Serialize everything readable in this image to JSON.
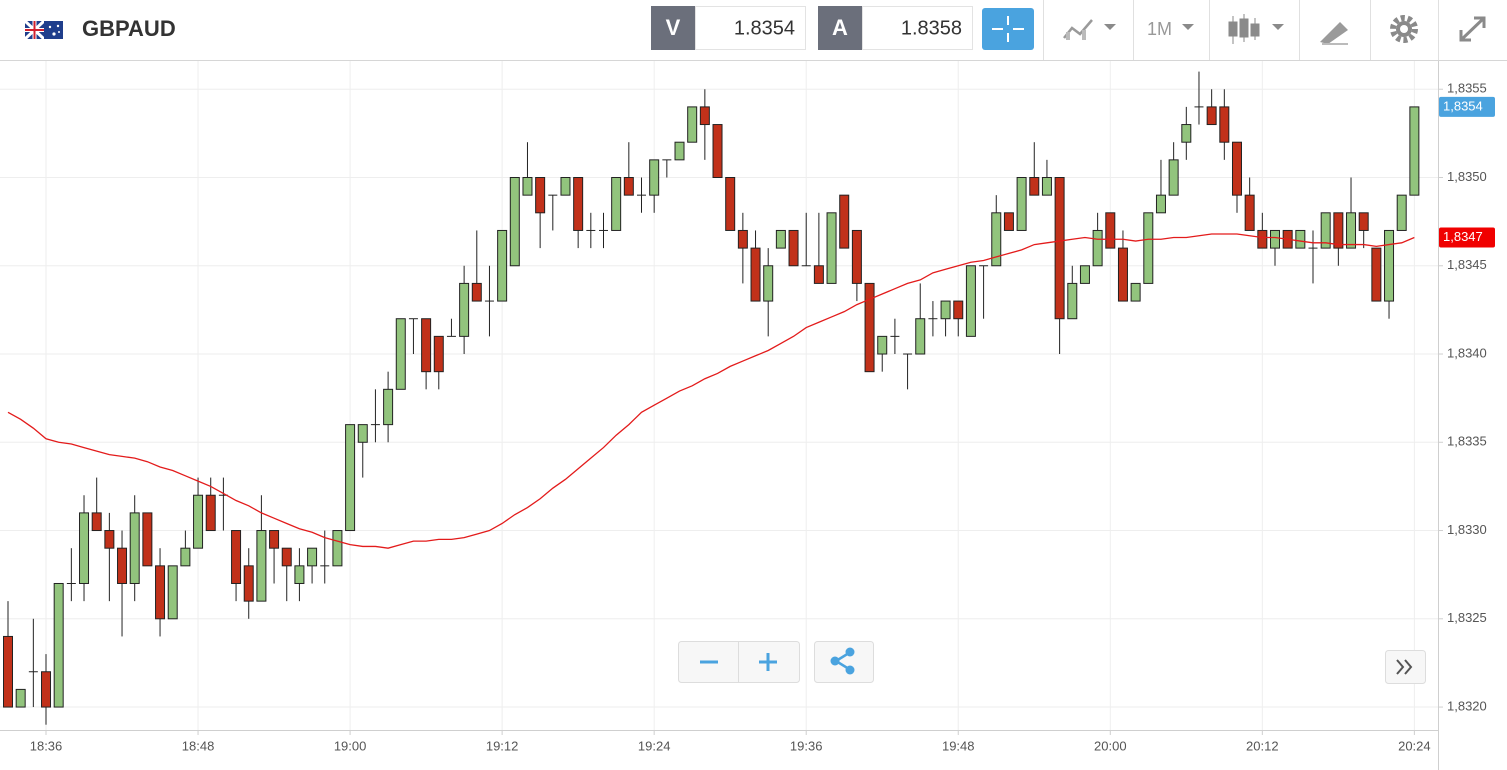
{
  "header": {
    "symbol": "GBPAUD",
    "bid_label": "V",
    "bid": "1.8354",
    "ask_label": "A",
    "ask": "1.8358",
    "timeframe": "1M"
  },
  "chart_data": {
    "type": "candlestick",
    "x": [
      "18:33",
      "18:34",
      "18:35",
      "18:36",
      "18:37",
      "18:38",
      "18:39",
      "18:40",
      "18:41",
      "18:42",
      "18:43",
      "18:44",
      "18:45",
      "18:46",
      "18:47",
      "18:48",
      "18:49",
      "18:50",
      "18:51",
      "18:52",
      "18:53",
      "18:54",
      "18:55",
      "18:56",
      "18:57",
      "18:58",
      "18:59",
      "19:00",
      "19:01",
      "19:02",
      "19:03",
      "19:04",
      "19:05",
      "19:06",
      "19:07",
      "19:08",
      "19:09",
      "19:10",
      "19:11",
      "19:12",
      "19:13",
      "19:14",
      "19:15",
      "19:16",
      "19:17",
      "19:18",
      "19:19",
      "19:20",
      "19:21",
      "19:22",
      "19:23",
      "19:24",
      "19:25",
      "19:26",
      "19:27",
      "19:28",
      "19:29",
      "19:30",
      "19:31",
      "19:32",
      "19:33",
      "19:34",
      "19:35",
      "19:36",
      "19:37",
      "19:38",
      "19:39",
      "19:40",
      "19:41",
      "19:42",
      "19:43",
      "19:44",
      "19:45",
      "19:46",
      "19:47",
      "19:48",
      "19:49",
      "19:50",
      "19:51",
      "19:52",
      "19:53",
      "19:54",
      "19:55",
      "19:56",
      "19:57",
      "19:58",
      "19:59",
      "20:00",
      "20:01",
      "20:02",
      "20:03",
      "20:04",
      "20:05",
      "20:06",
      "20:07",
      "20:08",
      "20:09",
      "20:10",
      "20:11",
      "20:12",
      "20:13",
      "20:14",
      "20:15",
      "20:16",
      "20:17",
      "20:18",
      "20:19",
      "20:20",
      "20:21",
      "20:22",
      "20:23",
      "20:24"
    ],
    "open": [
      1.8324,
      1.832,
      1.8322,
      1.8322,
      1.832,
      1.8327,
      1.8327,
      1.8331,
      1.833,
      1.8329,
      1.8327,
      1.8331,
      1.8328,
      1.8325,
      1.8328,
      1.8329,
      1.8332,
      1.8332,
      1.833,
      1.8328,
      1.8326,
      1.833,
      1.8329,
      1.8327,
      1.8328,
      1.8328,
      1.8328,
      1.833,
      1.8335,
      1.8336,
      1.8336,
      1.8338,
      1.8342,
      1.8342,
      1.8341,
      1.8341,
      1.8341,
      1.8344,
      1.8343,
      1.8343,
      1.8345,
      1.8349,
      1.835,
      1.8349,
      1.8349,
      1.835,
      1.8347,
      1.8347,
      1.8347,
      1.835,
      1.8349,
      1.8349,
      1.8351,
      1.8351,
      1.8352,
      1.8354,
      1.8353,
      1.835,
      1.8347,
      1.8346,
      1.8343,
      1.8346,
      1.8347,
      1.8345,
      1.8345,
      1.8344,
      1.8349,
      1.8347,
      1.8344,
      1.834,
      1.8341,
      1.834,
      1.834,
      1.8342,
      1.8342,
      1.8343,
      1.8341,
      1.8345,
      1.8345,
      1.8348,
      1.8347,
      1.835,
      1.8349,
      1.835,
      1.8342,
      1.8344,
      1.8345,
      1.8348,
      1.8346,
      1.8343,
      1.8344,
      1.8348,
      1.8349,
      1.8352,
      1.8354,
      1.8354,
      1.8354,
      1.8352,
      1.8349,
      1.8347,
      1.8346,
      1.8347,
      1.8346,
      1.8346,
      1.8346,
      1.8348,
      1.8346,
      1.8348,
      1.8346,
      1.8343,
      1.8347,
      1.8349
    ],
    "high": [
      1.8326,
      1.8321,
      1.8325,
      1.8323,
      1.8327,
      1.8329,
      1.8332,
      1.8333,
      1.8331,
      1.833,
      1.8332,
      1.8331,
      1.8329,
      1.8328,
      1.833,
      1.8333,
      1.8333,
      1.8333,
      1.833,
      1.8329,
      1.8332,
      1.833,
      1.8329,
      1.8329,
      1.8329,
      1.833,
      1.833,
      1.8336,
      1.8336,
      1.8338,
      1.8339,
      1.8342,
      1.8342,
      1.8342,
      1.8341,
      1.8342,
      1.8345,
      1.8347,
      1.8345,
      1.8347,
      1.835,
      1.8352,
      1.835,
      1.8349,
      1.835,
      1.835,
      1.8348,
      1.8348,
      1.835,
      1.8352,
      1.835,
      1.8351,
      1.8351,
      1.8352,
      1.8354,
      1.8355,
      1.8353,
      1.835,
      1.8348,
      1.8347,
      1.8346,
      1.8347,
      1.8347,
      1.8348,
      1.8348,
      1.8348,
      1.8349,
      1.8347,
      1.8344,
      1.8341,
      1.8342,
      1.834,
      1.8344,
      1.8343,
      1.8343,
      1.8343,
      1.8345,
      1.8345,
      1.8349,
      1.8348,
      1.835,
      1.8352,
      1.8351,
      1.835,
      1.8345,
      1.8345,
      1.8348,
      1.8348,
      1.8347,
      1.8344,
      1.8348,
      1.8351,
      1.8352,
      1.8354,
      1.8356,
      1.8355,
      1.8355,
      1.8352,
      1.835,
      1.8348,
      1.8347,
      1.8347,
      1.8347,
      1.8347,
      1.8348,
      1.8348,
      1.835,
      1.8348,
      1.8346,
      1.8347,
      1.8349,
      1.8354
    ],
    "low": [
      1.832,
      1.832,
      1.832,
      1.8319,
      1.832,
      1.8326,
      1.8326,
      1.833,
      1.8326,
      1.8324,
      1.8326,
      1.8328,
      1.8324,
      1.8325,
      1.8328,
      1.8329,
      1.833,
      1.833,
      1.8326,
      1.8325,
      1.8326,
      1.8327,
      1.8326,
      1.8326,
      1.8327,
      1.8327,
      1.8328,
      1.833,
      1.8333,
      1.8335,
      1.8335,
      1.8338,
      1.834,
      1.8338,
      1.8338,
      1.8341,
      1.834,
      1.8343,
      1.8341,
      1.8343,
      1.8345,
      1.8349,
      1.8346,
      1.8347,
      1.8349,
      1.8346,
      1.8346,
      1.8346,
      1.8347,
      1.8349,
      1.8348,
      1.8348,
      1.835,
      1.8351,
      1.8352,
      1.8351,
      1.835,
      1.8347,
      1.8344,
      1.8343,
      1.8341,
      1.8346,
      1.8345,
      1.8345,
      1.8344,
      1.8344,
      1.8346,
      1.8343,
      1.8339,
      1.8339,
      1.834,
      1.8338,
      1.834,
      1.8341,
      1.8341,
      1.8341,
      1.8341,
      1.8342,
      1.8345,
      1.8347,
      1.8347,
      1.8349,
      1.8349,
      1.834,
      1.8342,
      1.8344,
      1.8345,
      1.8346,
      1.8343,
      1.8343,
      1.8344,
      1.8348,
      1.8349,
      1.8351,
      1.8353,
      1.8353,
      1.8351,
      1.8348,
      1.8347,
      1.8346,
      1.8345,
      1.8346,
      1.8346,
      1.8344,
      1.8346,
      1.8345,
      1.8346,
      1.8346,
      1.8343,
      1.8342,
      1.8347,
      1.8349
    ],
    "close": [
      1.832,
      1.8321,
      1.8322,
      1.832,
      1.8327,
      1.8327,
      1.8331,
      1.833,
      1.8329,
      1.8327,
      1.8331,
      1.8328,
      1.8325,
      1.8328,
      1.8329,
      1.8332,
      1.833,
      1.8332,
      1.8327,
      1.8326,
      1.833,
      1.8329,
      1.8328,
      1.8328,
      1.8329,
      1.8328,
      1.833,
      1.8336,
      1.8336,
      1.8336,
      1.8338,
      1.8342,
      1.8342,
      1.8339,
      1.8339,
      1.8341,
      1.8344,
      1.8343,
      1.8343,
      1.8347,
      1.835,
      1.835,
      1.8348,
      1.8349,
      1.835,
      1.8347,
      1.8347,
      1.8347,
      1.835,
      1.8349,
      1.8349,
      1.8351,
      1.8351,
      1.8352,
      1.8354,
      1.8353,
      1.835,
      1.8347,
      1.8346,
      1.8343,
      1.8345,
      1.8347,
      1.8345,
      1.8345,
      1.8344,
      1.8348,
      1.8346,
      1.8344,
      1.8339,
      1.8341,
      1.8341,
      1.834,
      1.8342,
      1.8342,
      1.8343,
      1.8342,
      1.8345,
      1.8345,
      1.8348,
      1.8347,
      1.835,
      1.8349,
      1.835,
      1.8342,
      1.8344,
      1.8345,
      1.8347,
      1.8346,
      1.8343,
      1.8344,
      1.8348,
      1.8349,
      1.8351,
      1.8353,
      1.8354,
      1.8353,
      1.8352,
      1.8349,
      1.8347,
      1.8346,
      1.8347,
      1.8346,
      1.8347,
      1.8346,
      1.8348,
      1.8346,
      1.8348,
      1.8347,
      1.8343,
      1.8347,
      1.8349,
      1.8354
    ],
    "up_color": "#92c47d",
    "down_color": "#c1311a",
    "moving_average": {
      "color": "#e31b1b",
      "values": [
        1.83367,
        1.83363,
        1.83358,
        1.83352,
        1.8335,
        1.83349,
        1.83347,
        1.83345,
        1.83343,
        1.83342,
        1.83341,
        1.83339,
        1.83336,
        1.83334,
        1.83331,
        1.83328,
        1.83325,
        1.83321,
        1.83317,
        1.83314,
        1.8331,
        1.83307,
        1.83304,
        1.83301,
        1.83299,
        1.83296,
        1.83294,
        1.83292,
        1.83291,
        1.83291,
        1.8329,
        1.83292,
        1.83294,
        1.83294,
        1.83295,
        1.83295,
        1.83296,
        1.83298,
        1.833,
        1.83304,
        1.83309,
        1.83313,
        1.83318,
        1.83324,
        1.83329,
        1.83335,
        1.83341,
        1.83347,
        1.83354,
        1.8336,
        1.83367,
        1.83371,
        1.83375,
        1.83379,
        1.83382,
        1.83386,
        1.83389,
        1.83393,
        1.83396,
        1.83399,
        1.83402,
        1.83406,
        1.8341,
        1.83415,
        1.83418,
        1.83421,
        1.83424,
        1.83428,
        1.83431,
        1.83434,
        1.83437,
        1.8344,
        1.83442,
        1.83446,
        1.83448,
        1.8345,
        1.83452,
        1.83453,
        1.83455,
        1.83457,
        1.83459,
        1.83462,
        1.83463,
        1.83464,
        1.83465,
        1.83466,
        1.83465,
        1.83465,
        1.83465,
        1.83464,
        1.83465,
        1.83465,
        1.83466,
        1.83466,
        1.83467,
        1.83468,
        1.83468,
        1.83468,
        1.83467,
        1.83466,
        1.83466,
        1.83465,
        1.83464,
        1.83463,
        1.83463,
        1.83462,
        1.83462,
        1.83462,
        1.83461,
        1.83462,
        1.83463,
        1.83466
      ]
    },
    "last_price": {
      "value": 1.8354,
      "label": "1,8354",
      "color": "#4aa3df"
    },
    "average_price": {
      "value": 1.83466,
      "label": "1,8347",
      "color": "#f00000"
    },
    "ylim": [
      1.83187,
      1.83566
    ],
    "yticks": [
      {
        "value": 1.832,
        "label": "1,8320"
      },
      {
        "value": 1.8325,
        "label": "1,8325"
      },
      {
        "value": 1.833,
        "label": "1,8330"
      },
      {
        "value": 1.8335,
        "label": "1,8335"
      },
      {
        "value": 1.834,
        "label": "1,8340"
      },
      {
        "value": 1.8345,
        "label": "1,8345"
      },
      {
        "value": 1.835,
        "label": "1,8350"
      },
      {
        "value": 1.8355,
        "label": "1,8355"
      }
    ],
    "xticks": [
      "18:36",
      "18:48",
      "19:00",
      "19:12",
      "19:24",
      "19:36",
      "19:48",
      "20:00",
      "20:12",
      "20:24"
    ],
    "grid": true
  }
}
